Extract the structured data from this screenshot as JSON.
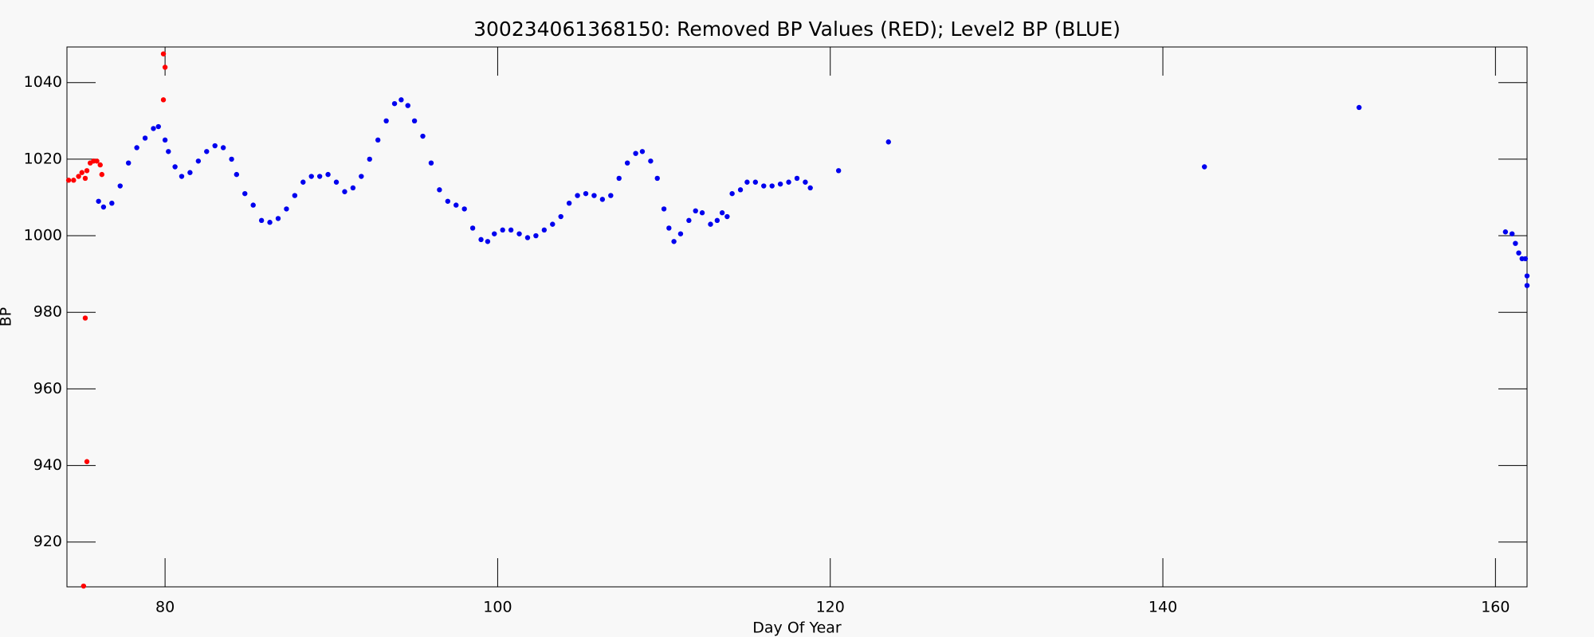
{
  "chart_data": {
    "type": "scatter",
    "title": "300234061368150: Removed BP Values (RED); Level2 BP (BLUE)",
    "x_label": "Day Of Year",
    "y_label": "BP",
    "xlim": [
      74.1,
      161.9
    ],
    "ylim": [
      908.3,
      1049.3
    ],
    "xticks": [
      80,
      100,
      120,
      140,
      160
    ],
    "yticks": [
      920,
      940,
      960,
      980,
      1000,
      1020,
      1040
    ],
    "series": [
      {
        "name": "Removed BP Values",
        "color": "#ff0000",
        "x": [
          74.2,
          74.5,
          74.8,
          75.0,
          75.2,
          75.3,
          75.5,
          75.7,
          75.9,
          76.1,
          76.2,
          75.2,
          75.3,
          75.1,
          79.9,
          80.0,
          79.9
        ],
        "values": [
          1014.5,
          1014.5,
          1015.5,
          1016.5,
          1015,
          1017,
          1019,
          1019.5,
          1019.5,
          1018.5,
          1016,
          978.5,
          941,
          908.5,
          1047.5,
          1044,
          1035.5
        ]
      },
      {
        "name": "Level2 BP",
        "color": "#0000ee",
        "x": [
          76.0,
          76.3,
          76.8,
          77.3,
          77.8,
          78.3,
          78.8,
          79.3,
          79.6,
          80.0,
          80.2,
          80.6,
          81.0,
          81.5,
          82.0,
          82.5,
          83.0,
          83.5,
          84.0,
          84.3,
          84.8,
          85.3,
          85.8,
          86.3,
          86.8,
          87.3,
          87.8,
          88.3,
          88.8,
          89.3,
          89.8,
          90.3,
          90.8,
          91.3,
          91.8,
          92.3,
          92.8,
          93.3,
          93.8,
          94.2,
          94.6,
          95.0,
          95.5,
          96.0,
          96.5,
          97.0,
          97.5,
          98.0,
          98.5,
          99.0,
          99.4,
          99.8,
          100.3,
          100.8,
          101.3,
          101.8,
          102.3,
          102.8,
          103.3,
          103.8,
          104.3,
          104.8,
          105.3,
          105.8,
          106.3,
          106.8,
          107.3,
          107.8,
          108.3,
          108.7,
          109.2,
          109.6,
          110.0,
          110.3,
          110.6,
          111.0,
          111.5,
          111.9,
          112.3,
          112.8,
          113.2,
          113.5,
          113.8,
          114.1,
          114.6,
          115.0,
          115.5,
          116.0,
          116.5,
          117.0,
          117.5,
          118.0,
          118.5,
          118.8,
          120.5,
          123.5,
          142.5,
          151.8,
          160.6,
          161.0,
          161.2,
          161.4,
          161.6,
          161.8,
          161.9,
          161.9
        ],
        "values": [
          1009,
          1007.5,
          1008.5,
          1013,
          1019,
          1023,
          1025.5,
          1028,
          1028.5,
          1025,
          1022,
          1018,
          1015.5,
          1016.5,
          1019.5,
          1022,
          1023.5,
          1023,
          1020,
          1016,
          1011,
          1008,
          1004,
          1003.5,
          1004.5,
          1007,
          1010.5,
          1014,
          1015.5,
          1015.5,
          1016,
          1014,
          1011.5,
          1012.5,
          1015.5,
          1020,
          1025,
          1030,
          1034.5,
          1035.5,
          1034,
          1030,
          1026,
          1019,
          1012,
          1009,
          1008,
          1007,
          1002,
          999,
          998.5,
          1000.5,
          1001.5,
          1001.5,
          1000.5,
          999.5,
          1000,
          1001.5,
          1003,
          1005,
          1008.5,
          1010.5,
          1011,
          1010.5,
          1009.5,
          1010.5,
          1015,
          1019,
          1021.5,
          1022,
          1019.5,
          1015,
          1007,
          1002,
          998.5,
          1000.5,
          1004,
          1006.5,
          1006,
          1003,
          1004,
          1006,
          1005,
          1011,
          1012,
          1014,
          1014,
          1013,
          1013,
          1013.5,
          1014,
          1015,
          1014,
          1012.5,
          1017,
          1024.5,
          1018,
          1033.5,
          1001,
          1000.5,
          998,
          995.5,
          994,
          994,
          989.5,
          987
        ]
      }
    ]
  }
}
